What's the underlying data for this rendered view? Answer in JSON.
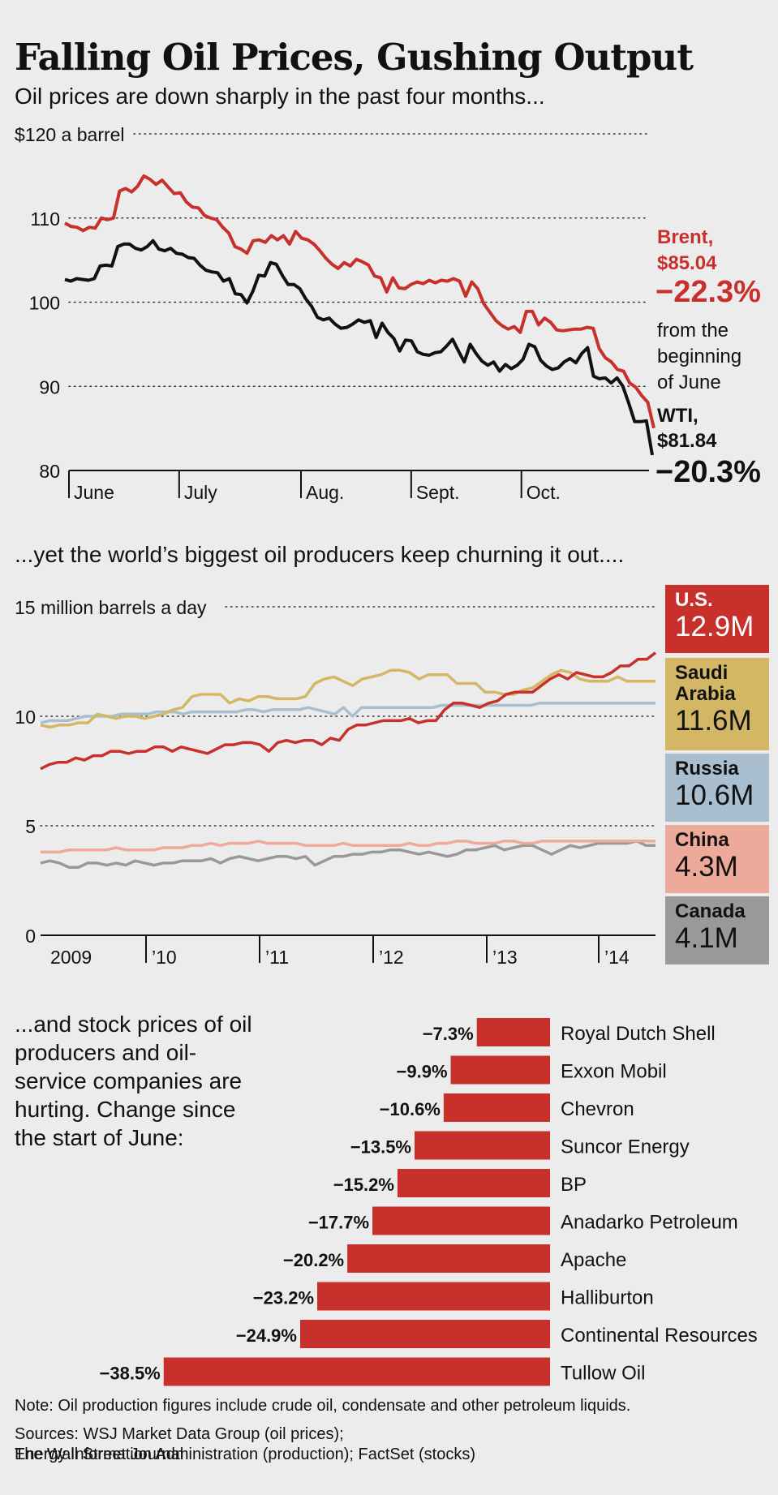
{
  "title": "Falling Oil Prices, Gushing Output",
  "subtitle_prices": "Oil prices are down sharply in the past four months...",
  "subtitle_production": "...yet the world’s biggest oil producers keep churning it out....",
  "stocks_intro": "...and stock prices of oil producers and oil-service companies are hurting. Change since the start of June:",
  "note": "Note: Oil production figures include crude oil, condensate and other petroleum liquids.",
  "sources_line1": "Sources: WSJ Market Data Group (oil prices);",
  "sources_line2": "Energy Information Administration (production); FactSet (stocks)",
  "credit": "The Wall Street Journal",
  "chart_data": [
    {
      "type": "line",
      "title": "Oil prices are down sharply in the past four months...",
      "ylabel": "$120 a barrel",
      "ylim": [
        80,
        120
      ],
      "yticks": [
        80,
        90,
        100,
        110,
        120
      ],
      "ytick_labels": [
        "80",
        "90",
        "100",
        "110",
        "$120 a barrel"
      ],
      "xticks": [
        "June",
        "July",
        "Aug.",
        "Sept.",
        "Oct."
      ],
      "series": [
        {
          "name": "Brent",
          "color": "#c8302c",
          "label_name": "Brent,",
          "label_value": "$85.04",
          "label_change": "−22.3%",
          "label_note": [
            "from the",
            "beginning",
            "of June"
          ],
          "values": [
            109.4,
            109.0,
            108.9,
            108.5,
            108.9,
            108.8,
            110.0,
            109.8,
            110.0,
            113.2,
            113.5,
            113.1,
            113.8,
            115.0,
            114.6,
            114.0,
            114.5,
            113.7,
            112.9,
            113.0,
            111.9,
            111.3,
            111.2,
            110.3,
            110.0,
            109.8,
            108.9,
            108.2,
            106.6,
            106.3,
            105.8,
            107.3,
            107.4,
            107.1,
            107.9,
            107.4,
            107.9,
            106.9,
            108.4,
            107.6,
            107.4,
            106.9,
            106.1,
            105.2,
            104.5,
            104.0,
            104.7,
            104.3,
            105.1,
            104.8,
            104.4,
            103.1,
            102.9,
            101.2,
            102.9,
            101.7,
            101.6,
            102.1,
            102.4,
            102.2,
            102.6,
            102.3,
            102.6,
            102.5,
            102.8,
            102.5,
            100.7,
            102.4,
            101.6,
            99.8,
            98.8,
            97.8,
            97.2,
            96.8,
            97.1,
            96.4,
            98.9,
            98.9,
            97.3,
            98.1,
            97.6,
            96.7,
            96.6,
            96.7,
            96.8,
            96.8,
            97.0,
            96.9,
            94.5,
            93.4,
            92.9,
            92.0,
            91.8,
            90.4,
            89.9,
            88.9,
            88.1,
            85.04
          ],
          "series_index": 0
        },
        {
          "name": "WTI",
          "color": "#111111",
          "label_name": "WTI,",
          "label_value": "$81.84",
          "label_change": "−20.3%",
          "values": [
            102.7,
            102.5,
            102.8,
            102.7,
            102.6,
            102.8,
            104.3,
            104.4,
            104.3,
            106.6,
            106.9,
            106.9,
            106.4,
            106.2,
            106.6,
            107.3,
            106.3,
            106.1,
            106.4,
            105.8,
            105.7,
            105.3,
            105.2,
            104.4,
            103.8,
            103.6,
            103.5,
            102.5,
            102.8,
            101.0,
            100.9,
            99.9,
            101.3,
            103.2,
            103.1,
            104.7,
            104.5,
            103.2,
            102.1,
            102.1,
            101.6,
            100.4,
            99.5,
            98.2,
            97.9,
            98.1,
            97.4,
            96.9,
            97.0,
            97.4,
            97.9,
            97.6,
            97.8,
            95.8,
            97.5,
            96.4,
            95.7,
            94.2,
            95.5,
            95.4,
            94.1,
            93.8,
            93.7,
            94.0,
            94.1,
            94.8,
            95.6,
            94.2,
            92.9,
            95.0,
            93.9,
            93.0,
            92.5,
            92.9,
            91.8,
            92.6,
            92.1,
            92.5,
            93.2,
            95.0,
            94.7,
            93.1,
            92.4,
            92.0,
            92.2,
            92.9,
            93.3,
            92.8,
            93.9,
            94.6,
            91.2,
            90.9,
            91.0,
            90.4,
            91.0,
            90.0,
            88.0,
            85.8,
            85.8,
            85.9,
            81.84
          ],
          "series_index": 1
        }
      ]
    },
    {
      "type": "line",
      "title": "...yet the world’s biggest oil producers keep churning it out....",
      "ylabel": "15 million barrels a day",
      "ylim": [
        0,
        15
      ],
      "yticks": [
        0,
        5,
        10,
        15
      ],
      "ytick_labels": [
        "0",
        "5",
        "10",
        "15 million barrels a day"
      ],
      "xticks": [
        "2009",
        "’10",
        "’11",
        "’12",
        "’13",
        "’14"
      ],
      "series": [
        {
          "name": "U.S.",
          "color": "#c8302c",
          "label_value": "12.9M",
          "values": [
            7.6,
            7.8,
            7.9,
            7.9,
            8.1,
            8.0,
            8.2,
            8.2,
            8.4,
            8.4,
            8.3,
            8.4,
            8.4,
            8.6,
            8.6,
            8.4,
            8.6,
            8.5,
            8.4,
            8.3,
            8.5,
            8.7,
            8.7,
            8.8,
            8.8,
            8.7,
            8.4,
            8.8,
            8.9,
            8.8,
            8.9,
            8.9,
            8.7,
            9.0,
            8.9,
            9.4,
            9.6,
            9.6,
            9.7,
            9.8,
            9.8,
            9.8,
            9.9,
            9.7,
            9.8,
            9.8,
            10.3,
            10.6,
            10.6,
            10.5,
            10.4,
            10.6,
            10.7,
            11.0,
            11.1,
            11.1,
            11.1,
            11.4,
            11.7,
            11.9,
            11.7,
            12.0,
            11.9,
            11.8,
            11.8,
            12.0,
            12.3,
            12.3,
            12.6,
            12.6,
            12.9
          ]
        },
        {
          "name": "Saudi Arabia",
          "color": "#d4b764",
          "label_name": "Saudi Arabia",
          "label_value": "11.6M",
          "values": [
            9.6,
            9.5,
            9.6,
            9.6,
            9.7,
            9.7,
            10.1,
            10.0,
            9.9,
            10.0,
            10.0,
            9.9,
            10.0,
            10.1,
            10.3,
            10.4,
            10.9,
            11.0,
            11.0,
            11.0,
            10.6,
            10.8,
            10.7,
            10.9,
            10.9,
            10.8,
            10.8,
            10.8,
            10.9,
            11.5,
            11.7,
            11.8,
            11.6,
            11.4,
            11.7,
            11.8,
            11.9,
            12.1,
            12.1,
            12.0,
            11.7,
            11.9,
            11.9,
            11.9,
            11.5,
            11.5,
            11.5,
            11.1,
            11.1,
            11.0,
            11.0,
            11.2,
            11.3,
            11.6,
            11.9,
            12.1,
            12.0,
            11.7,
            11.6,
            11.6,
            11.6,
            11.8,
            11.6,
            11.6,
            11.6,
            11.6
          ]
        },
        {
          "name": "Russia",
          "color": "#a9bfd0",
          "label_value": "10.6M",
          "values": [
            9.7,
            9.8,
            9.8,
            9.8,
            9.9,
            10.0,
            10.0,
            10.0,
            10.0,
            10.1,
            10.1,
            10.1,
            10.1,
            10.2,
            10.2,
            10.2,
            10.1,
            10.2,
            10.2,
            10.2,
            10.2,
            10.2,
            10.2,
            10.3,
            10.3,
            10.2,
            10.3,
            10.3,
            10.3,
            10.3,
            10.4,
            10.3,
            10.2,
            10.1,
            10.4,
            10.0,
            10.4,
            10.4,
            10.4,
            10.4,
            10.4,
            10.4,
            10.4,
            10.4,
            10.4,
            10.5,
            10.5,
            10.5,
            10.5,
            10.5,
            10.5,
            10.5,
            10.5,
            10.5,
            10.5,
            10.5,
            10.6,
            10.6,
            10.6,
            10.6,
            10.6,
            10.6,
            10.6,
            10.6,
            10.6,
            10.6,
            10.6,
            10.6,
            10.6,
            10.6
          ]
        },
        {
          "name": "China",
          "color": "#eda99a",
          "label_value": "4.3M",
          "values": [
            3.8,
            3.8,
            3.8,
            3.9,
            3.9,
            3.9,
            3.9,
            3.9,
            4.0,
            3.9,
            3.9,
            3.9,
            3.9,
            4.0,
            4.0,
            4.0,
            4.1,
            4.1,
            4.2,
            4.1,
            4.2,
            4.2,
            4.2,
            4.3,
            4.2,
            4.2,
            4.2,
            4.2,
            4.1,
            4.1,
            4.1,
            4.1,
            4.2,
            4.1,
            4.1,
            4.1,
            4.1,
            4.1,
            4.1,
            4.2,
            4.1,
            4.1,
            4.2,
            4.2,
            4.3,
            4.3,
            4.2,
            4.2,
            4.2,
            4.3,
            4.3,
            4.2,
            4.2,
            4.3,
            4.3,
            4.3,
            4.3,
            4.3,
            4.3,
            4.3,
            4.3,
            4.3,
            4.3,
            4.3,
            4.3,
            4.3
          ]
        },
        {
          "name": "Canada",
          "color": "#999999",
          "label_value": "4.1M",
          "values": [
            3.3,
            3.4,
            3.3,
            3.1,
            3.1,
            3.3,
            3.3,
            3.2,
            3.3,
            3.2,
            3.4,
            3.3,
            3.2,
            3.3,
            3.3,
            3.4,
            3.4,
            3.4,
            3.5,
            3.3,
            3.5,
            3.6,
            3.5,
            3.4,
            3.5,
            3.6,
            3.6,
            3.5,
            3.6,
            3.2,
            3.4,
            3.6,
            3.6,
            3.7,
            3.7,
            3.8,
            3.8,
            3.9,
            3.9,
            3.8,
            3.7,
            3.8,
            3.7,
            3.6,
            3.7,
            3.9,
            3.9,
            4.0,
            4.1,
            3.9,
            4.0,
            4.1,
            4.1,
            3.9,
            3.7,
            3.9,
            4.1,
            4.0,
            4.1,
            4.2,
            4.2,
            4.2,
            4.2,
            4.3,
            4.1,
            4.1
          ]
        }
      ]
    },
    {
      "type": "bar",
      "title": "...and stock prices of oil producers and oil-service companies are hurting. Change since the start of June:",
      "orientation": "horizontal",
      "color": "#c8302c",
      "categories": [
        "Royal Dutch Shell",
        "Exxon Mobil",
        "Chevron",
        "Suncor Energy",
        "BP",
        "Anadarko Petroleum",
        "Apache",
        "Halliburton",
        "Continental Resources",
        "Tullow Oil"
      ],
      "values": [
        -7.3,
        -9.9,
        -10.6,
        -13.5,
        -15.2,
        -17.7,
        -20.2,
        -23.2,
        -24.9,
        -38.5
      ],
      "value_labels": [
        "−7.3%",
        "−9.9%",
        "−10.6%",
        "−13.5%",
        "−15.2%",
        "−17.7%",
        "−20.2%",
        "−23.2%",
        "−24.9%",
        "−38.5%"
      ]
    }
  ]
}
